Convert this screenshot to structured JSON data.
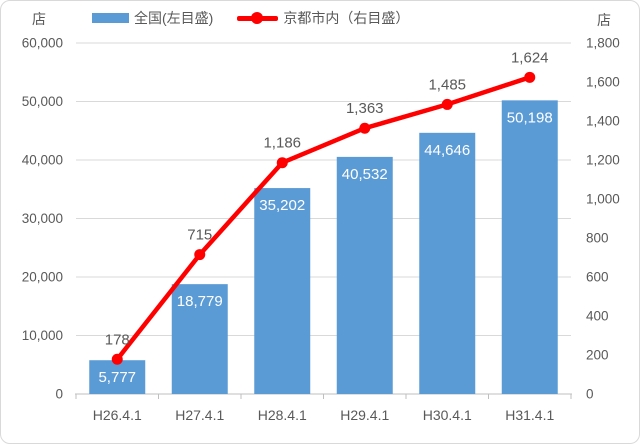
{
  "units": {
    "left": "店",
    "right": "店"
  },
  "legend": {
    "items": [
      {
        "label": "全国(左目盛)",
        "marker": "bar-swatch",
        "color": "#5B9BD5"
      },
      {
        "label": "京都市内（右目盛）",
        "marker": "line-dot",
        "color": "#FF0000"
      }
    ]
  },
  "chart_data": {
    "type": "combo: bar + line (dual axis)",
    "categories": [
      "H26.4.1",
      "H27.4.1",
      "H28.4.1",
      "H29.4.1",
      "H30.4.1",
      "H31.4.1"
    ],
    "series": [
      {
        "name": "全国(左目盛)",
        "type": "bar",
        "axis": "left",
        "color": "#5B9BD5",
        "values": [
          5777,
          18779,
          35202,
          40532,
          44646,
          50198
        ],
        "labels": [
          "5,777",
          "18,779",
          "35,202",
          "40,532",
          "44,646",
          "50,198"
        ]
      },
      {
        "name": "京都市内（右目盛）",
        "type": "line",
        "axis": "right",
        "color": "#FF0000",
        "values": [
          178,
          715,
          1186,
          1363,
          1485,
          1624
        ],
        "labels": [
          "178",
          "715",
          "1,186",
          "1,363",
          "1,485",
          "1,624"
        ]
      }
    ],
    "left_axis": {
      "title": "店",
      "min": 0,
      "max": 60000,
      "step": 10000,
      "ticks": [
        "0",
        "10,000",
        "20,000",
        "30,000",
        "40,000",
        "50,000",
        "60,000"
      ]
    },
    "right_axis": {
      "title": "店",
      "min": 0,
      "max": 1800,
      "step": 200,
      "ticks": [
        "0",
        "200",
        "400",
        "600",
        "800",
        "1,000",
        "1,200",
        "1,400",
        "1,600",
        "1,800"
      ]
    },
    "grid": true,
    "legend_position": "top"
  },
  "colors": {
    "bar": "#5B9BD5",
    "line": "#FF0000",
    "text": "#595959",
    "bar_label": "#FFFFFF",
    "gridline": "#D9D9D9",
    "axis_line": "#BFBFBF",
    "frame_border": "#D9D9D9",
    "background": "#FFFFFF"
  }
}
